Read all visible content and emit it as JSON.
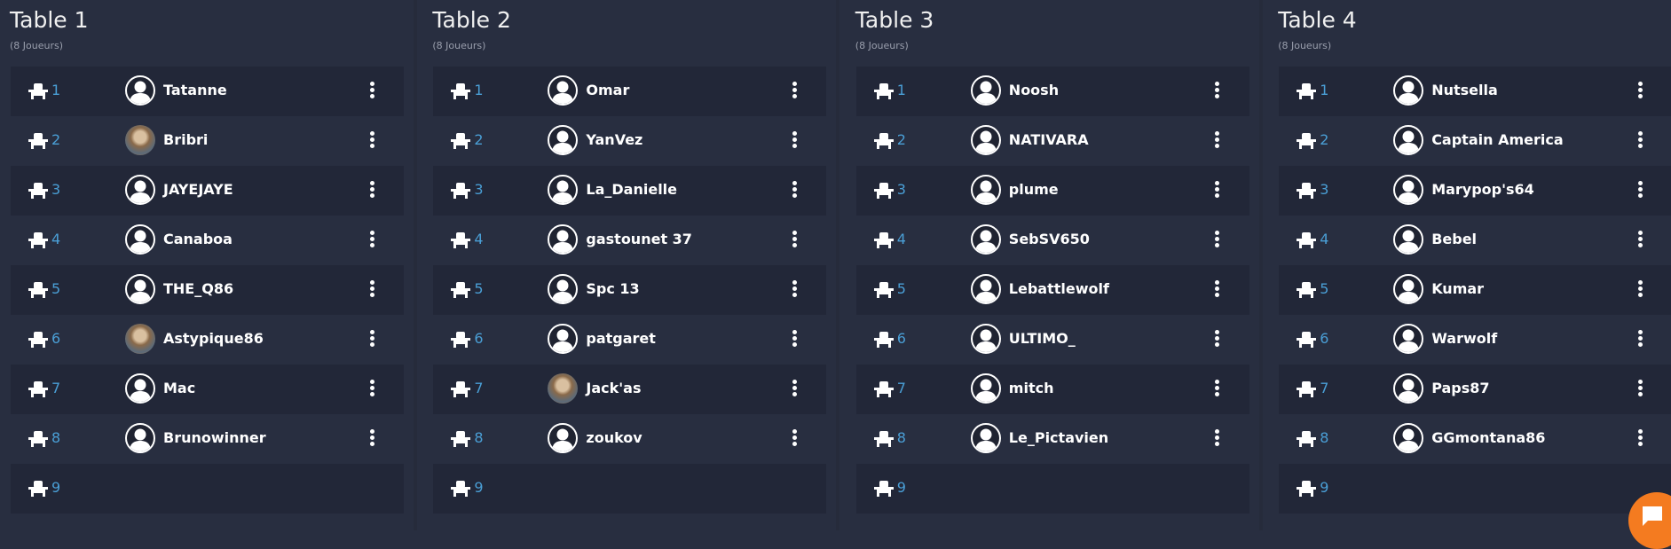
{
  "tables": [
    {
      "title": "Table 1",
      "subtitle": "(8 Joueurs)",
      "seats": [
        {
          "n": "1",
          "player": "Tatanne",
          "avatar": "default"
        },
        {
          "n": "2",
          "player": "Bribri",
          "avatar": "photo"
        },
        {
          "n": "3",
          "player": "JAYEJAYE",
          "avatar": "default"
        },
        {
          "n": "4",
          "player": "Canaboa",
          "avatar": "default"
        },
        {
          "n": "5",
          "player": "THE_Q86",
          "avatar": "default"
        },
        {
          "n": "6",
          "player": "Astypique86",
          "avatar": "photo"
        },
        {
          "n": "7",
          "player": "Mac",
          "avatar": "default"
        },
        {
          "n": "8",
          "player": "Brunowinner",
          "avatar": "default"
        },
        {
          "n": "9",
          "player": null
        }
      ]
    },
    {
      "title": "Table 2",
      "subtitle": "(8 Joueurs)",
      "seats": [
        {
          "n": "1",
          "player": "Omar",
          "avatar": "default"
        },
        {
          "n": "2",
          "player": "YanVez",
          "avatar": "default"
        },
        {
          "n": "3",
          "player": "La_Danielle",
          "avatar": "default"
        },
        {
          "n": "4",
          "player": "gastounet 37",
          "avatar": "default"
        },
        {
          "n": "5",
          "player": "Spc 13",
          "avatar": "default"
        },
        {
          "n": "6",
          "player": "patgaret",
          "avatar": "default"
        },
        {
          "n": "7",
          "player": "Jack'as",
          "avatar": "photo"
        },
        {
          "n": "8",
          "player": "zoukov",
          "avatar": "default"
        },
        {
          "n": "9",
          "player": null
        }
      ]
    },
    {
      "title": "Table 3",
      "subtitle": "(8 Joueurs)",
      "seats": [
        {
          "n": "1",
          "player": "Noosh",
          "avatar": "default"
        },
        {
          "n": "2",
          "player": "NATIVARA",
          "avatar": "default"
        },
        {
          "n": "3",
          "player": "plume",
          "avatar": "default"
        },
        {
          "n": "4",
          "player": "SebSV650",
          "avatar": "default"
        },
        {
          "n": "5",
          "player": "Lebattlewolf",
          "avatar": "default"
        },
        {
          "n": "6",
          "player": "ULTIMO_",
          "avatar": "default"
        },
        {
          "n": "7",
          "player": "mitch",
          "avatar": "default"
        },
        {
          "n": "8",
          "player": "Le_Pictavien",
          "avatar": "default"
        },
        {
          "n": "9",
          "player": null
        }
      ]
    },
    {
      "title": "Table 4",
      "subtitle": "(8 Joueurs)",
      "seats": [
        {
          "n": "1",
          "player": "Nutsella",
          "avatar": "default"
        },
        {
          "n": "2",
          "player": "Captain America",
          "avatar": "default"
        },
        {
          "n": "3",
          "player": "Marypop's64",
          "avatar": "default"
        },
        {
          "n": "4",
          "player": "Bebel",
          "avatar": "default"
        },
        {
          "n": "5",
          "player": "Kumar",
          "avatar": "default"
        },
        {
          "n": "6",
          "player": "Warwolf",
          "avatar": "default"
        },
        {
          "n": "7",
          "player": "Paps87",
          "avatar": "default"
        },
        {
          "n": "8",
          "player": "GGmontana86",
          "avatar": "default"
        },
        {
          "n": "9",
          "player": null
        }
      ]
    }
  ],
  "colors": {
    "seat_number": "#4a9fd6",
    "chat_button": "#f47b20",
    "background": "#282e40"
  },
  "icons": {
    "seat": "chair-icon",
    "menu": "kebab-menu-icon",
    "chat": "chat-bubble-icon"
  }
}
